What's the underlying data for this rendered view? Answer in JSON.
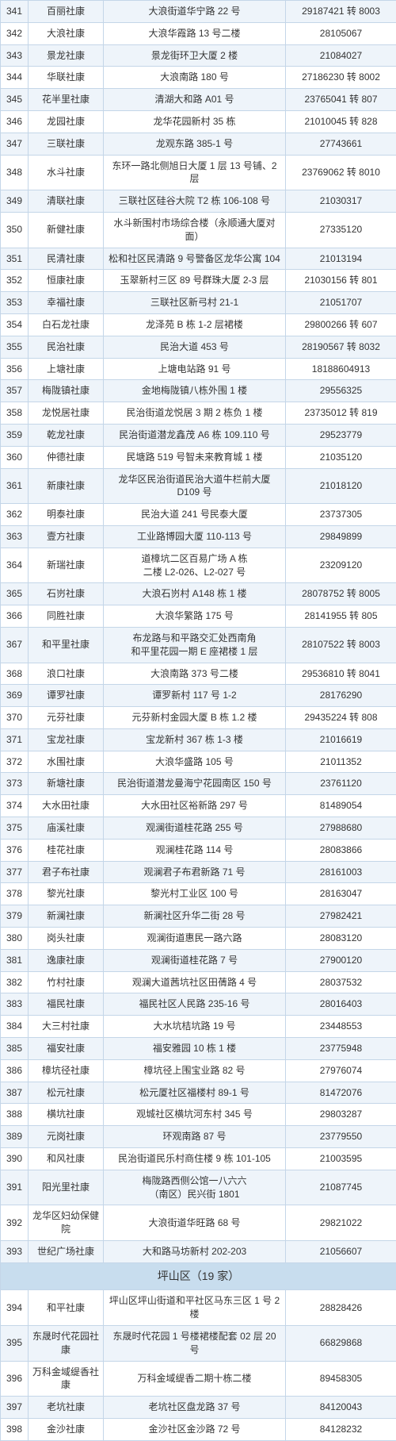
{
  "rows": [
    {
      "n": "341",
      "name": "百丽社康",
      "addr": "大浪街道华宁路 22 号",
      "phone": "29187421 转 8003",
      "cls": "odd"
    },
    {
      "n": "342",
      "name": "大浪社康",
      "addr": "大浪华霞路 13 号二楼",
      "phone": "28105067",
      "cls": "even"
    },
    {
      "n": "343",
      "name": "景龙社康",
      "addr": "景龙街环卫大厦 2 楼",
      "phone": "21084027",
      "cls": "odd"
    },
    {
      "n": "344",
      "name": "华联社康",
      "addr": "大浪南路 180 号",
      "phone": "27186230 转 8002",
      "cls": "even"
    },
    {
      "n": "345",
      "name": "花半里社康",
      "addr": "清湖大和路 A01 号",
      "phone": "23765041 转 807",
      "cls": "odd"
    },
    {
      "n": "346",
      "name": "龙园社康",
      "addr": "龙华花园新村 35 栋",
      "phone": "21010045 转 828",
      "cls": "even"
    },
    {
      "n": "347",
      "name": "三联社康",
      "addr": "龙观东路 385-1 号",
      "phone": "27743661",
      "cls": "odd"
    },
    {
      "n": "348",
      "name": "水斗社康",
      "addr": "东环一路北侧旭日大厦 1 层 13 号铺、2 层",
      "phone": "23769062 转 8010",
      "cls": "even"
    },
    {
      "n": "349",
      "name": "清联社康",
      "addr": "三联社区硅谷大院 T2 栋 106-108 号",
      "phone": "21030317",
      "cls": "odd"
    },
    {
      "n": "350",
      "name": "新健社康",
      "addr": "水斗新围村市场综合楼（永顺通大厦对面）",
      "phone": "27335120",
      "cls": "even"
    },
    {
      "n": "351",
      "name": "民清社康",
      "addr": "松和社区民清路 9 号警备区龙华公寓 104",
      "phone": "21013194",
      "cls": "odd"
    },
    {
      "n": "352",
      "name": "恒康社康",
      "addr": "玉翠新村三区 89 号群珠大厦 2-3 层",
      "phone": "21030156 转 801",
      "cls": "even"
    },
    {
      "n": "353",
      "name": "幸福社康",
      "addr": "三联社区新弓村 21-1",
      "phone": "21051707",
      "cls": "odd"
    },
    {
      "n": "354",
      "name": "白石龙社康",
      "addr": "龙泽苑 B 栋 1-2 层裙楼",
      "phone": "29800266 转 607",
      "cls": "even"
    },
    {
      "n": "355",
      "name": "民治社康",
      "addr": "民治大道 453 号",
      "phone": "28190567 转 8032",
      "cls": "odd"
    },
    {
      "n": "356",
      "name": "上塘社康",
      "addr": "上塘电站路 91 号",
      "phone": "18188604913",
      "cls": "even"
    },
    {
      "n": "357",
      "name": "梅陇镇社康",
      "addr": "金地梅陇镇八栋外围 1 楼",
      "phone": "29556325",
      "cls": "odd"
    },
    {
      "n": "358",
      "name": "龙悦居社康",
      "addr": "民治街道龙悦居 3 期 2 栋负 1 楼",
      "phone": "23735012 转 819",
      "cls": "even"
    },
    {
      "n": "359",
      "name": "乾龙社康",
      "addr": "民治街道潜龙鑫茂 A6 栋 109.110 号",
      "phone": "29523779",
      "cls": "odd"
    },
    {
      "n": "360",
      "name": "仲德社康",
      "addr": "民塘路 519 号智未来教育城 1 楼",
      "phone": "21035120",
      "cls": "even"
    },
    {
      "n": "361",
      "name": "新康社康",
      "addr": "龙华区民治街道民治大道牛栏前大厦 D109 号",
      "phone": "21018120",
      "cls": "odd"
    },
    {
      "n": "362",
      "name": "明泰社康",
      "addr": "民治大道 241 号民泰大厦",
      "phone": "23737305",
      "cls": "even"
    },
    {
      "n": "363",
      "name": "壹方社康",
      "addr": "工业路博园大厦 110-113 号",
      "phone": "29849899",
      "cls": "odd"
    },
    {
      "n": "364",
      "name": "新瑞社康",
      "addr": "道樟坑二区百易广场 A 栋\n二楼 L2-026、L2-027 号",
      "phone": "23209120",
      "cls": "even"
    },
    {
      "n": "365",
      "name": "石岃社康",
      "addr": "大浪石岃村 A148 栋 1 楼",
      "phone": "28078752 转 8005",
      "cls": "odd"
    },
    {
      "n": "366",
      "name": "同胜社康",
      "addr": "大浪华繁路 175 号",
      "phone": "28141955 转 805",
      "cls": "even"
    },
    {
      "n": "367",
      "name": "和平里社康",
      "addr": "布龙路与和平路交汇处西南角\n和平里花园一期 E 座裙楼 1 层",
      "phone": "28107522 转 8003",
      "cls": "odd"
    },
    {
      "n": "368",
      "name": "浪口社康",
      "addr": "大浪南路 373 号二楼",
      "phone": "29536810 转 8041",
      "cls": "even"
    },
    {
      "n": "369",
      "name": "谭罗社康",
      "addr": "谭罗新村 117 号 1-2",
      "phone": "28176290",
      "cls": "odd"
    },
    {
      "n": "370",
      "name": "元芬社康",
      "addr": "元芬新村金园大厦 B 栋 1.2 楼",
      "phone": "29435224 转 808",
      "cls": "even"
    },
    {
      "n": "371",
      "name": "宝龙社康",
      "addr": "宝龙新村 367 栋 1-3 楼",
      "phone": "21016619",
      "cls": "odd"
    },
    {
      "n": "372",
      "name": "水围社康",
      "addr": "大浪华盛路 105 号",
      "phone": "21011352",
      "cls": "even"
    },
    {
      "n": "373",
      "name": "新塘社康",
      "addr": "民治街道潜龙曼海宁花园南区 150 号",
      "phone": "23761120",
      "cls": "odd"
    },
    {
      "n": "374",
      "name": "大水田社康",
      "addr": "大水田社区裕新路 297 号",
      "phone": "81489054",
      "cls": "even"
    },
    {
      "n": "375",
      "name": "庙溪社康",
      "addr": "观澜街道桂花路 255 号",
      "phone": "27988680",
      "cls": "odd"
    },
    {
      "n": "376",
      "name": "桂花社康",
      "addr": "观澜桂花路 114 号",
      "phone": "28083866",
      "cls": "even"
    },
    {
      "n": "377",
      "name": "君子布社康",
      "addr": "观澜君子布君新路 71 号",
      "phone": "28161003",
      "cls": "odd"
    },
    {
      "n": "378",
      "name": "黎光社康",
      "addr": "黎光村工业区 100 号",
      "phone": "28163047",
      "cls": "even"
    },
    {
      "n": "379",
      "name": "新澜社康",
      "addr": "新澜社区升华二街 28 号",
      "phone": "27982421",
      "cls": "odd"
    },
    {
      "n": "380",
      "name": "岗头社康",
      "addr": "观澜街道惠民一路六路",
      "phone": "28083120",
      "cls": "even"
    },
    {
      "n": "381",
      "name": "逸康社康",
      "addr": "观澜街道桂花路 7 号",
      "phone": "27900120",
      "cls": "odd"
    },
    {
      "n": "382",
      "name": "竹村社康",
      "addr": "观澜大道茜坑社区田蒨路 4 号",
      "phone": "28037532",
      "cls": "even"
    },
    {
      "n": "383",
      "name": "福民社康",
      "addr": "福民社区人民路 235-16 号",
      "phone": "28016403",
      "cls": "odd"
    },
    {
      "n": "384",
      "name": "大三村社康",
      "addr": "大水坑桔坑路 19 号",
      "phone": "23448553",
      "cls": "even"
    },
    {
      "n": "385",
      "name": "福安社康",
      "addr": "福安雅园 10 栋 1 楼",
      "phone": "23775948",
      "cls": "odd"
    },
    {
      "n": "386",
      "name": "樟坑径社康",
      "addr": "樟坑径上围宝业路 82 号",
      "phone": "27976074",
      "cls": "even"
    },
    {
      "n": "387",
      "name": "松元社康",
      "addr": "松元厦社区福楼村 89-1 号",
      "phone": "81472076",
      "cls": "odd"
    },
    {
      "n": "388",
      "name": "横坑社康",
      "addr": "观城社区横坑河东村 345 号",
      "phone": "29803287",
      "cls": "even"
    },
    {
      "n": "389",
      "name": "元岗社康",
      "addr": "环观南路 87 号",
      "phone": "23779550",
      "cls": "odd"
    },
    {
      "n": "390",
      "name": "和风社康",
      "addr": "民治街道民乐村商住楼 9 栋 101-105",
      "phone": "21003595",
      "cls": "even"
    },
    {
      "n": "391",
      "name": "阳光里社康",
      "addr": "梅陇路西侧公馆一八六六\n（南区）民兴街 1801",
      "phone": "21087745",
      "cls": "odd"
    },
    {
      "n": "392",
      "name": "龙华区妇幼保健院",
      "addr": "大浪街道华旺路 68 号",
      "phone": "29821022",
      "cls": "even"
    },
    {
      "n": "393",
      "name": "世纪广场社康",
      "addr": "大和路马坊新村 202-203",
      "phone": "21056607",
      "cls": "odd"
    }
  ],
  "section": {
    "title": "坪山区（19 家）"
  },
  "rows2": [
    {
      "n": "394",
      "name": "和平社康",
      "addr": "坪山区坪山街道和平社区马东三区 1 号 2 楼",
      "phone": "28828426",
      "cls": "even"
    },
    {
      "n": "395",
      "name": "东晟时代花园社康",
      "addr": "东晟时代花园 1 号楼裙楼配套 02 层 20 号",
      "phone": "66829868",
      "cls": "odd"
    },
    {
      "n": "396",
      "name": "万科金域缇香社康",
      "addr": "万科金域缇香二期十栋二楼",
      "phone": "89458305",
      "cls": "even"
    },
    {
      "n": "397",
      "name": "老坑社康",
      "addr": "老坑社区盘龙路 37 号",
      "phone": "84120043",
      "cls": "odd"
    },
    {
      "n": "398",
      "name": "金沙社康",
      "addr": "金沙社区金沙路 72 号",
      "phone": "84128232",
      "cls": "even"
    }
  ]
}
